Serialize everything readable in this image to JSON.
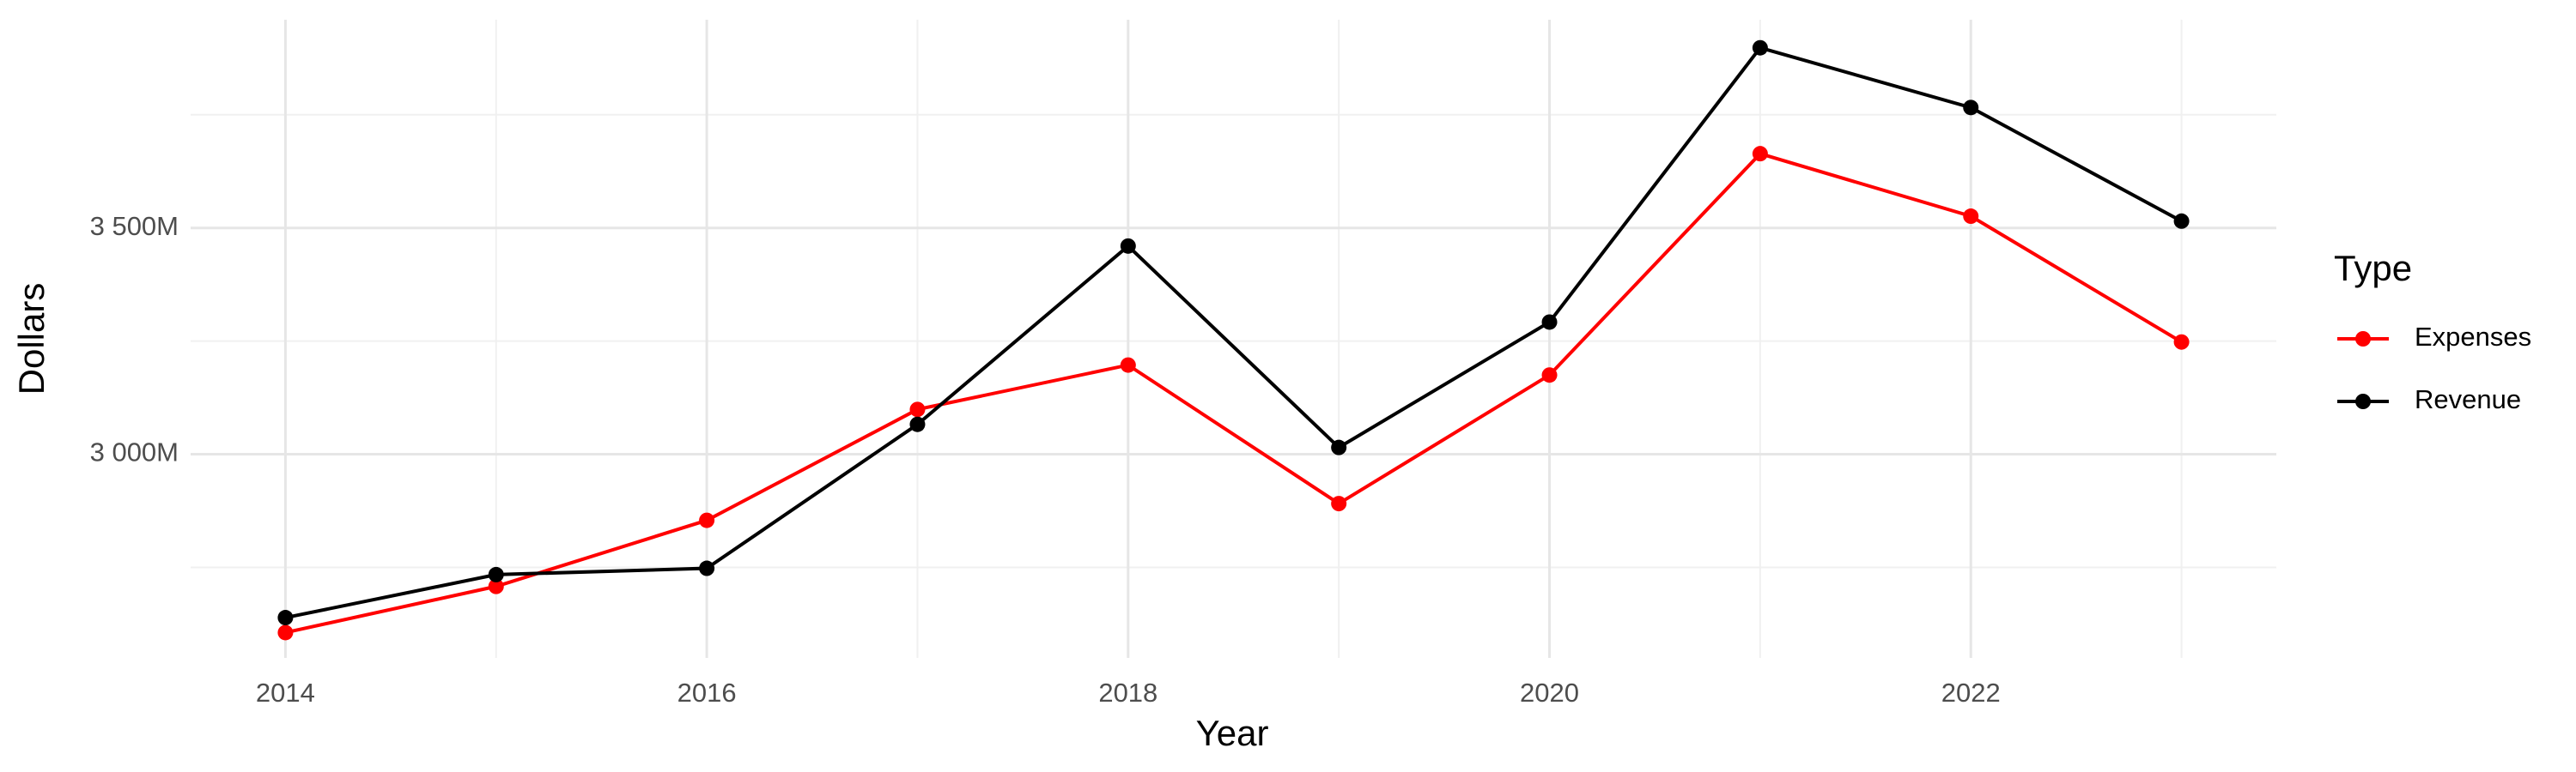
{
  "chart_data": {
    "type": "line",
    "x_label": "Year",
    "y_label": "Dollars",
    "x": [
      2014,
      2015,
      2016,
      2017,
      2018,
      2019,
      2020,
      2021,
      2022,
      2023
    ],
    "series": [
      {
        "name": "Expenses",
        "color": "#ff0000",
        "values": [
          2606,
          2708,
          2854,
          3099,
          3197,
          2891,
          3175,
          3664,
          3526,
          3248
        ]
      },
      {
        "name": "Revenue",
        "color": "#000000",
        "values": [
          2639,
          2734,
          2748,
          3066,
          3460,
          3015,
          3292,
          3898,
          3766,
          3515
        ]
      }
    ],
    "xlim": [
      2013.55,
      2023.45
    ],
    "xticks": [
      2014,
      2016,
      2018,
      2020,
      2022
    ],
    "minor_xticks": [
      2015,
      2017,
      2019,
      2021,
      2023
    ],
    "ylim": [
      2550,
      3960
    ],
    "yticks": [
      {
        "value": 3000,
        "label": "3 000M"
      },
      {
        "value": 3500,
        "label": "3 500M"
      }
    ],
    "minor_yticks": [
      2750,
      3250,
      3750
    ],
    "grid": true,
    "legend_title": "Type",
    "legend_position": "right"
  }
}
